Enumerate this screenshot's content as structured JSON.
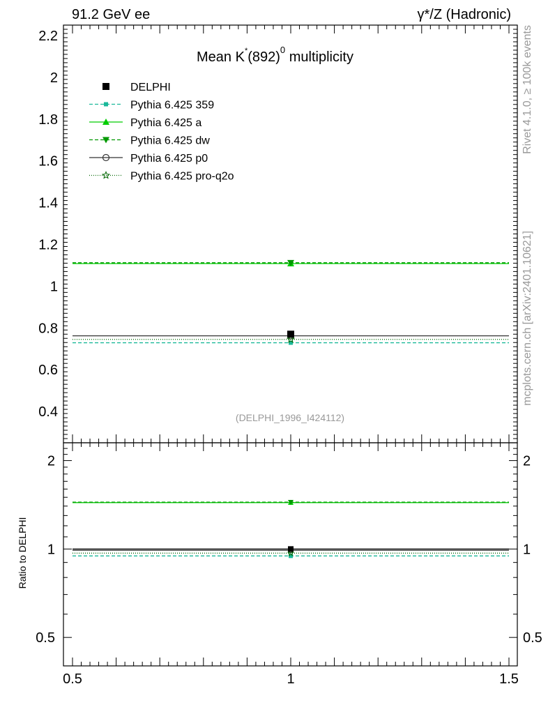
{
  "header": {
    "left": "91.2 GeV ee",
    "right": "γ*/Z (Hadronic)"
  },
  "side": {
    "rivet": "Rivet 4.1.0, ≥ 100k events",
    "mcplots": "mcplots.cern.ch [arXiv:2401.10621]"
  },
  "chart_data": {
    "type": "line",
    "title": "Mean K*(892)0 multiplicity",
    "title_parts": {
      "base": "Mean K",
      "sup1": "*",
      "mid": "(892)",
      "sup2": "0",
      "tail": " multiplicity"
    },
    "watermark": "(DELPHI_1996_I424112)",
    "xlabel": "",
    "ylabel": "",
    "ratio_ylabel": "Ratio to DELPHI",
    "xlim": [
      0.5,
      1.5
    ],
    "ylim": [
      0.25,
      2.25
    ],
    "ratio_ylim": [
      0.4,
      2.3
    ],
    "x_ticks": [
      0.5,
      1,
      1.5
    ],
    "x_tick_labels": [
      "0.5",
      "1",
      "1.5"
    ],
    "y_ticks": [
      0.4,
      0.6,
      0.8,
      1,
      1.2,
      1.4,
      1.6,
      1.8,
      2,
      2.2
    ],
    "y_tick_labels": [
      "0.4",
      "0.6",
      "0.8",
      "1",
      "1.2",
      "1.4",
      "1.6",
      "1.8",
      "2",
      "2.2"
    ],
    "ratio_ticks": [
      0.5,
      1,
      2
    ],
    "ratio_tick_labels": [
      "0.5",
      "1",
      "2"
    ],
    "legend_position": "top-left",
    "series": [
      {
        "name": "DELPHI",
        "x": 1,
        "value": 0.77,
        "ratio": 1.0,
        "color": "#000000",
        "dash": "",
        "marker": "square",
        "line": false
      },
      {
        "name": "Pythia 6.425 359",
        "x": 1,
        "value": 0.729,
        "ratio": 0.947,
        "color": "#1ab899",
        "dash": "5,3",
        "marker": "smallsquare",
        "line": true
      },
      {
        "name": "Pythia 6.425 a",
        "x": 1,
        "value": 1.108,
        "ratio": 1.439,
        "color": "#00cc00",
        "dash": "",
        "marker": "triangle-up",
        "line": true
      },
      {
        "name": "Pythia 6.425 dw",
        "x": 1,
        "value": 1.112,
        "ratio": 1.444,
        "color": "#009900",
        "dash": "5,3",
        "marker": "triangle-down",
        "line": true
      },
      {
        "name": "Pythia 6.425 p0",
        "x": 1,
        "value": 0.762,
        "ratio": 0.99,
        "color": "#333333",
        "dash": "",
        "marker": "circle-open",
        "line": true
      },
      {
        "name": "Pythia 6.425 pro-q2o",
        "x": 1,
        "value": 0.745,
        "ratio": 0.968,
        "color": "#006600",
        "dash": "1,2",
        "marker": "star-open",
        "line": true
      }
    ]
  }
}
